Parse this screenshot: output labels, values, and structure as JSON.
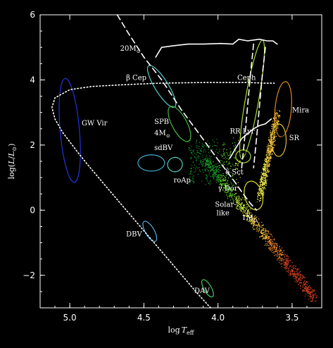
{
  "chart_data": {
    "type": "scatter",
    "title": "",
    "xlabel": "log T_eff",
    "ylabel": "log(L/L_⊙)",
    "xlabel_parts": {
      "main": "log",
      "var": "T",
      "sub": "eff"
    },
    "ylabel_parts": {
      "pre": "log(",
      "var": "L",
      "mid": "/",
      "var2": "L",
      "sub": "⊙",
      "post": ")"
    },
    "x_reversed": true,
    "xlim": [
      5.2,
      3.3
    ],
    "ylim": [
      -3,
      6
    ],
    "x_ticks": [
      "5.0",
      "4.5",
      "4.0",
      "3.5"
    ],
    "y_ticks": [
      "−2",
      "0",
      "2",
      "4",
      "6"
    ],
    "x_tick_values": [
      5.0,
      4.5,
      4.0,
      3.5
    ],
    "y_tick_values": [
      -2,
      0,
      2,
      4,
      6
    ],
    "grid": false,
    "background": "#000000",
    "annotations": [
      {
        "text": "GW Vir",
        "x": 4.92,
        "y": 2.6
      },
      {
        "text": "β Cep",
        "x": 4.62,
        "y": 4.0
      },
      {
        "text": "SPB",
        "x": 4.43,
        "y": 2.65
      },
      {
        "text": "sdBV",
        "x": 4.43,
        "y": 1.85
      },
      {
        "text": "Ceph",
        "x": 3.87,
        "y": 4.0
      },
      {
        "text": "Mira",
        "x": 3.5,
        "y": 3.0
      },
      {
        "text": "RR Lyr",
        "x": 3.92,
        "y": 2.35
      },
      {
        "text": "SR",
        "x": 3.52,
        "y": 2.15
      },
      {
        "text": "δ Sct",
        "x": 3.95,
        "y": 1.1
      },
      {
        "text": "roAp",
        "x": 4.3,
        "y": 0.85
      },
      {
        "text": "γ Dor",
        "x": 4.0,
        "y": 0.6
      },
      {
        "text": "Solar-",
        "x": 4.02,
        "y": 0.1
      },
      {
        "text": "like",
        "x": 4.01,
        "y": -0.15
      },
      {
        "text": "DBV",
        "x": 4.62,
        "y": -0.8
      },
      {
        "text": "DAV",
        "x": 4.16,
        "y": -2.55
      }
    ],
    "mass_labels": [
      {
        "text": "20M",
        "sub": "⊙",
        "x": 4.66,
        "y": 4.9
      },
      {
        "text": "4M",
        "sub": "⊙",
        "x": 4.43,
        "y": 2.3
      },
      {
        "text": "1M",
        "sub": "⊙",
        "x": 3.84,
        "y": -0.3
      }
    ],
    "regions": [
      {
        "name": "GW Vir",
        "x": 5.0,
        "y": 2.45,
        "rx_dex": 0.065,
        "ry_dex": 1.6,
        "tilt": -5,
        "color": "#2233dd"
      },
      {
        "name": "β Cep",
        "x": 4.38,
        "y": 3.8,
        "rx_dex": 0.045,
        "ry_dex": 0.75,
        "tilt": -32,
        "color": "#55cccc"
      },
      {
        "name": "SPB",
        "x": 4.26,
        "y": 2.65,
        "rx_dex": 0.05,
        "ry_dex": 0.6,
        "tilt": -28,
        "color": "#44bb44"
      },
      {
        "name": "sdBV",
        "x": 4.45,
        "y": 1.45,
        "rx_dex": 0.09,
        "ry_dex": 0.25,
        "tilt": 0,
        "color": "#44aacc"
      },
      {
        "name": "sdBV2",
        "x": 4.29,
        "y": 1.4,
        "rx_dex": 0.05,
        "ry_dex": 0.22,
        "tilt": -15,
        "color": "#55ccbb"
      },
      {
        "name": "Ceph",
        "x": 3.77,
        "y": 3.4,
        "rx_dex": 0.045,
        "ry_dex": 1.85,
        "tilt": 10,
        "color": "#aadd33"
      },
      {
        "name": "Mira",
        "x": 3.56,
        "y": 3.1,
        "rx_dex": 0.055,
        "ry_dex": 0.85,
        "tilt": 5,
        "color": "#dd8822"
      },
      {
        "name": "SR",
        "x": 3.59,
        "y": 2.15,
        "rx_dex": 0.05,
        "ry_dex": 0.5,
        "tilt": 0,
        "color": "#ddbb33"
      },
      {
        "name": "RR Lyr",
        "x": 3.83,
        "y": 1.65,
        "rx_dex": 0.05,
        "ry_dex": 0.2,
        "tilt": 0,
        "color": "#aadd33"
      },
      {
        "name": "Solar-like",
        "x": 3.76,
        "y": 0.45,
        "rx_dex": 0.06,
        "ry_dex": 0.45,
        "tilt": -15,
        "color": "#dddd33"
      },
      {
        "name": "DBV",
        "x": 4.46,
        "y": -0.65,
        "rx_dex": 0.03,
        "ry_dex": 0.35,
        "tilt": -30,
        "color": "#55aadd"
      },
      {
        "name": "DAV",
        "x": 4.07,
        "y": -2.4,
        "rx_dex": 0.025,
        "ry_dex": 0.3,
        "tilt": -30,
        "color": "#44cc66"
      }
    ],
    "series": [
      {
        "style": "dotted",
        "color": "#ffffff",
        "x": [
          4.05,
          4.15,
          4.3,
          4.45,
          4.6,
          4.75,
          4.88,
          4.95,
          5.0,
          5.05,
          5.1,
          5.12,
          5.1,
          5.0,
          4.85,
          4.65,
          4.4,
          4.1,
          3.95,
          3.8,
          3.68,
          3.62
        ],
        "y": [
          -3.0,
          -2.5,
          -1.7,
          -0.9,
          -0.1,
          0.7,
          1.4,
          1.8,
          2.1,
          2.4,
          2.8,
          3.15,
          3.45,
          3.7,
          3.8,
          3.85,
          3.9,
          3.92,
          3.92,
          3.92,
          3.9,
          3.9
        ]
      },
      {
        "style": "dashed",
        "color": "#ffffff",
        "x": [
          4.68,
          4.6,
          4.5,
          4.38,
          4.25,
          4.12,
          4.0,
          3.9,
          3.83,
          3.78,
          3.74
        ],
        "y": [
          6.0,
          5.4,
          4.7,
          4.0,
          3.1,
          2.3,
          1.55,
          0.95,
          0.5,
          0.2,
          0.0
        ]
      },
      {
        "style": "dashed",
        "color": "#ffffff",
        "x": [
          3.76,
          3.78,
          3.8,
          3.82,
          3.84
        ],
        "y": [
          5.1,
          4.2,
          3.2,
          2.2,
          1.3
        ]
      },
      {
        "style": "dashed",
        "color": "#ffffff",
        "x": [
          3.68,
          3.7,
          3.72,
          3.74,
          3.76
        ],
        "y": [
          5.0,
          4.2,
          3.2,
          2.2,
          1.3
        ]
      },
      {
        "style": "solid",
        "color": "#ffffff",
        "x": [
          4.42,
          4.38,
          4.3,
          4.2,
          4.1,
          3.98,
          3.9,
          3.86,
          3.8,
          3.72,
          3.67,
          3.63,
          3.6
        ],
        "y": [
          4.7,
          5.0,
          5.05,
          5.1,
          5.1,
          5.12,
          5.1,
          5.25,
          5.2,
          5.25,
          5.2,
          5.2,
          5.1
        ]
      },
      {
        "style": "solid",
        "color": "#ffffff",
        "x": [
          3.92,
          3.88,
          3.84,
          3.8,
          3.76,
          3.72,
          3.68,
          3.64
        ],
        "y": [
          1.6,
          1.9,
          2.2,
          2.35,
          2.5,
          2.6,
          2.65,
          2.8
        ]
      }
    ],
    "stars": {
      "count": 2200,
      "main_sequence": "blue-white to red gradient",
      "colors": [
        "#1a9a2a",
        "#5fd12b",
        "#c7f03a",
        "#f5f04a",
        "#f7c43a",
        "#f0862a",
        "#d9411e"
      ]
    }
  }
}
